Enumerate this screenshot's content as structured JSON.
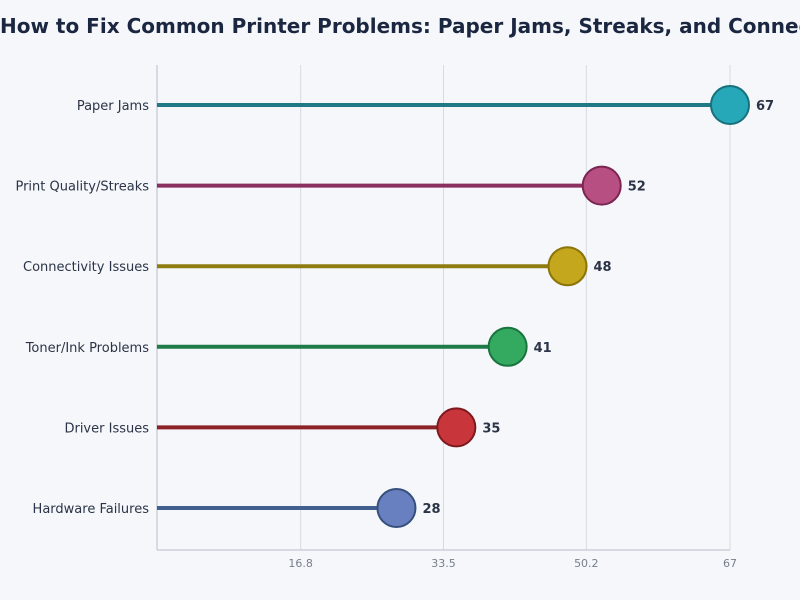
{
  "chart_data": {
    "type": "lollipop",
    "title": "How to Fix Common Printer Problems: Paper Jams, Streaks, and Connectivity",
    "xlabel": "",
    "ylabel": "",
    "xlim": [
      0,
      67
    ],
    "x_ticks": [
      "16.8",
      "33.5",
      "50.2",
      "67"
    ],
    "x_tick_values": [
      16.8,
      33.5,
      50.2,
      67
    ],
    "grid": true,
    "categories": [
      "Paper Jams",
      "Print Quality/Streaks",
      "Connectivity Issues",
      "Toner/Ink Problems",
      "Driver Issues",
      "Hardware Failures"
    ],
    "values": [
      67,
      52,
      48,
      41,
      35,
      28
    ],
    "value_labels": [
      "67",
      "52",
      "48",
      "41",
      "35",
      "28"
    ],
    "stem_colors": [
      "#1f7a85",
      "#8a2f5f",
      "#8f7d12",
      "#1e7a47",
      "#8c2226",
      "#42608f"
    ],
    "dot_colors": [
      "#27a8b8",
      "#b84f82",
      "#c4a71c",
      "#33aa5f",
      "#c8353a",
      "#6880c0"
    ],
    "dot_stroke_colors": [
      "#17707c",
      "#7b2552",
      "#8b7408",
      "#1a7440",
      "#7e1a1e",
      "#36507c"
    ]
  }
}
